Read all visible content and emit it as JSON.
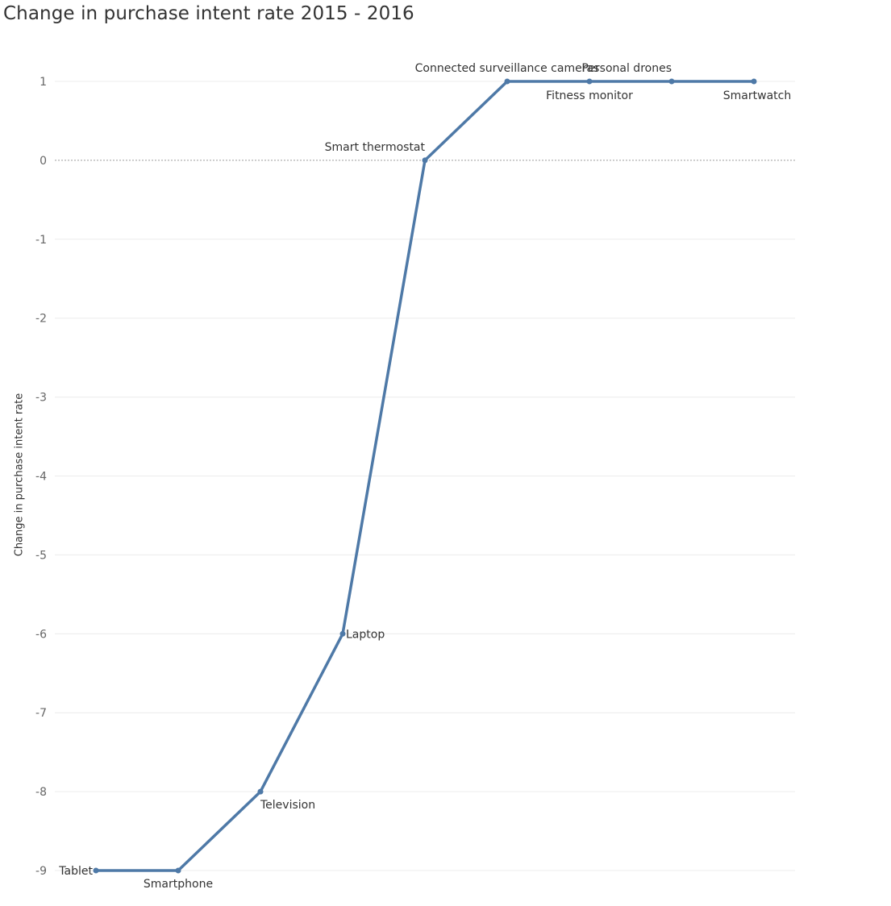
{
  "chart_data": {
    "type": "line",
    "title": "Change in purchase intent rate 2015 - 2016",
    "xlabel": "",
    "ylabel": "Change in purchase intent rate",
    "ylim": [
      -9,
      1
    ],
    "yticks": [
      "1",
      "0",
      "-1",
      "-2",
      "-3",
      "-4",
      "-5",
      "-6",
      "-7",
      "-8",
      "-9"
    ],
    "grid": true,
    "zero_line": "dashed",
    "line_color": "#4e79a7",
    "categories": [
      "Tablet",
      "Smartphone",
      "Television",
      "Laptop",
      "Smart thermostat",
      "Connected surveillance cameras",
      "Fitness monitor",
      "Personal drones",
      "Smartwatch"
    ],
    "values": [
      -9,
      -9,
      -8,
      -6,
      0,
      1,
      1,
      1,
      1
    ]
  }
}
